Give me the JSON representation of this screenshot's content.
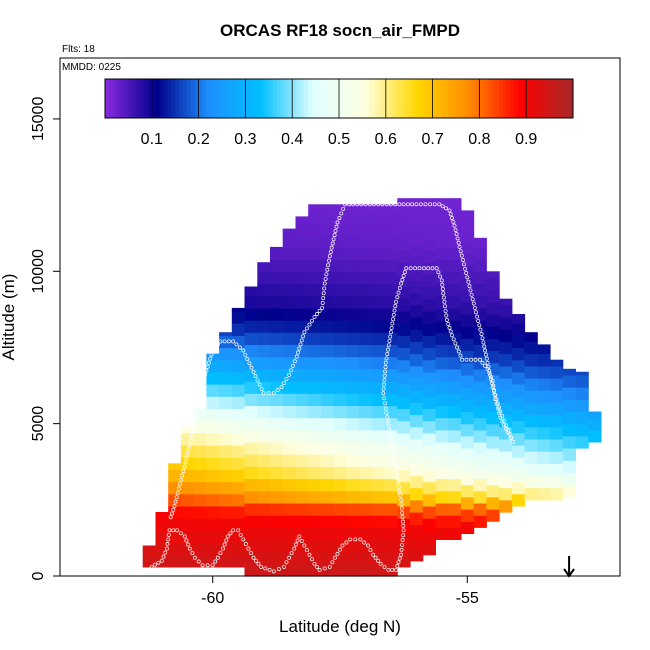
{
  "chart_data": {
    "type": "heatmap",
    "title": "ORCAS RF18 socn_air_FMPD",
    "annotations": {
      "flights": "Flts: 18",
      "date": "MMDD: 0225"
    },
    "xlabel": "Latitude (deg N)",
    "ylabel": "Altitude (m)",
    "xlim": [
      -63.0,
      -52.0
    ],
    "ylim": [
      0,
      17000
    ],
    "x_ticks": [
      {
        "value": -60,
        "label": "-60"
      },
      {
        "value": -55,
        "label": "-55"
      }
    ],
    "y_ticks": [
      {
        "value": 0,
        "label": "0"
      },
      {
        "value": 5000,
        "label": "5000"
      },
      {
        "value": 10000,
        "label": "10000"
      },
      {
        "value": 15000,
        "label": "15000"
      }
    ],
    "colorbar": {
      "range": [
        0,
        1
      ],
      "ticks": [
        {
          "value": 0.1,
          "label": "0.1"
        },
        {
          "value": 0.2,
          "label": "0.2"
        },
        {
          "value": 0.3,
          "label": "0.3"
        },
        {
          "value": 0.4,
          "label": "0.4"
        },
        {
          "value": 0.5,
          "label": "0.5"
        },
        {
          "value": 0.6,
          "label": "0.6"
        },
        {
          "value": 0.7,
          "label": "0.7"
        },
        {
          "value": 0.8,
          "label": "0.8"
        },
        {
          "value": 0.9,
          "label": "0.9"
        }
      ],
      "colors": [
        "#8a2be2",
        "#00008b",
        "#1e90ff",
        "#00bfff",
        "#e0ffff",
        "#ffffe0",
        "#ffd700",
        "#ff8c00",
        "#ff0000",
        "#a52a2a"
      ]
    },
    "field": {
      "description_free": true,
      "lat_bins": [
        -61.25,
        -52.25
      ],
      "bin_width_deg": 0.25,
      "bin_height_m": 400,
      "envelope": [
        {
          "lat": -61.25,
          "bottom": 300,
          "top": 1000
        },
        {
          "lat": -61.0,
          "bottom": 300,
          "top": 2100
        },
        {
          "lat": -60.75,
          "bottom": 300,
          "top": 3700
        },
        {
          "lat": -60.5,
          "bottom": 300,
          "top": 4900
        },
        {
          "lat": -60.25,
          "bottom": 300,
          "top": 5500
        },
        {
          "lat": -60.0,
          "bottom": 300,
          "top": 7300
        },
        {
          "lat": -59.75,
          "bottom": 300,
          "top": 8000
        },
        {
          "lat": -59.5,
          "bottom": 300,
          "top": 8800
        },
        {
          "lat": -59.25,
          "bottom": 0,
          "top": 9500
        },
        {
          "lat": -59.0,
          "bottom": 0,
          "top": 10300
        },
        {
          "lat": -58.75,
          "bottom": 0,
          "top": 10800
        },
        {
          "lat": -58.5,
          "bottom": 0,
          "top": 11400
        },
        {
          "lat": -58.25,
          "bottom": 0,
          "top": 11800
        },
        {
          "lat": -58.0,
          "bottom": 0,
          "top": 12200
        },
        {
          "lat": -57.75,
          "bottom": 0,
          "top": 12200
        },
        {
          "lat": -57.5,
          "bottom": 0,
          "top": 12200
        },
        {
          "lat": -57.25,
          "bottom": 0,
          "top": 12200
        },
        {
          "lat": -57.0,
          "bottom": 0,
          "top": 12200
        },
        {
          "lat": -56.75,
          "bottom": 0,
          "top": 12200
        },
        {
          "lat": -56.5,
          "bottom": 0,
          "top": 12200
        },
        {
          "lat": -56.25,
          "bottom": 300,
          "top": 12400
        },
        {
          "lat": -56.0,
          "bottom": 500,
          "top": 12400
        },
        {
          "lat": -55.75,
          "bottom": 700,
          "top": 12400
        },
        {
          "lat": -55.5,
          "bottom": 1200,
          "top": 12400
        },
        {
          "lat": -55.25,
          "bottom": 1200,
          "top": 12400
        },
        {
          "lat": -55.0,
          "bottom": 1400,
          "top": 12000
        },
        {
          "lat": -54.75,
          "bottom": 1600,
          "top": 11100
        },
        {
          "lat": -54.5,
          "bottom": 1800,
          "top": 10000
        },
        {
          "lat": -54.25,
          "bottom": 2100,
          "top": 9100
        },
        {
          "lat": -54.0,
          "bottom": 2300,
          "top": 8600
        },
        {
          "lat": -53.75,
          "bottom": 2500,
          "top": 8000
        },
        {
          "lat": -53.5,
          "bottom": 2500,
          "top": 7600
        },
        {
          "lat": -53.25,
          "bottom": 2500,
          "top": 7100
        },
        {
          "lat": -53.0,
          "bottom": 2600,
          "top": 6800
        },
        {
          "lat": -52.75,
          "bottom": 4200,
          "top": 6700
        },
        {
          "lat": -52.5,
          "bottom": 4400,
          "top": 5400
        }
      ],
      "levels_south": [
        {
          "alt": 0,
          "value": 0.96
        },
        {
          "alt": 1000,
          "value": 0.93
        },
        {
          "alt": 2000,
          "value": 0.9
        },
        {
          "alt": 2800,
          "value": 0.8
        },
        {
          "alt": 3400,
          "value": 0.72
        },
        {
          "alt": 4200,
          "value": 0.65
        },
        {
          "alt": 5000,
          "value": 0.55
        },
        {
          "alt": 5800,
          "value": 0.45
        },
        {
          "alt": 6800,
          "value": 0.32
        },
        {
          "alt": 8000,
          "value": 0.17
        },
        {
          "alt": 9000,
          "value": 0.1
        },
        {
          "alt": 10500,
          "value": 0.05
        },
        {
          "alt": 12500,
          "value": 0.02
        }
      ],
      "levels_north": [
        {
          "alt": 0,
          "value": 0.95
        },
        {
          "alt": 1600,
          "value": 0.9
        },
        {
          "alt": 2200,
          "value": 0.78
        },
        {
          "alt": 2600,
          "value": 0.58
        },
        {
          "alt": 3400,
          "value": 0.44
        },
        {
          "alt": 4500,
          "value": 0.34
        },
        {
          "alt": 5800,
          "value": 0.22
        },
        {
          "alt": 7200,
          "value": 0.12
        },
        {
          "alt": 8800,
          "value": 0.06
        },
        {
          "alt": 11000,
          "value": 0.02
        }
      ]
    },
    "flight_track": [
      [
        -61.2,
        300
      ],
      [
        -61.0,
        500
      ],
      [
        -60.9,
        900
      ],
      [
        -60.85,
        1500
      ],
      [
        -60.7,
        1500
      ],
      [
        -60.55,
        1300
      ],
      [
        -60.45,
        900
      ],
      [
        -60.35,
        600
      ],
      [
        -60.2,
        350
      ],
      [
        -60.0,
        350
      ],
      [
        -59.9,
        600
      ],
      [
        -59.8,
        900
      ],
      [
        -59.7,
        1300
      ],
      [
        -59.6,
        1500
      ],
      [
        -59.5,
        1500
      ],
      [
        -59.4,
        1200
      ],
      [
        -59.3,
        900
      ],
      [
        -59.2,
        600
      ],
      [
        -59.05,
        300
      ],
      [
        -58.8,
        150
      ],
      [
        -58.6,
        300
      ],
      [
        -58.5,
        600
      ],
      [
        -58.4,
        900
      ],
      [
        -58.3,
        1300
      ],
      [
        -58.2,
        1000
      ],
      [
        -58.1,
        700
      ],
      [
        -58.0,
        400
      ],
      [
        -57.9,
        200
      ],
      [
        -57.7,
        300
      ],
      [
        -57.6,
        600
      ],
      [
        -57.45,
        1000
      ],
      [
        -57.3,
        1200
      ],
      [
        -57.1,
        1200
      ],
      [
        -56.95,
        1000
      ],
      [
        -56.85,
        700
      ],
      [
        -56.7,
        400
      ],
      [
        -56.55,
        200
      ],
      [
        -56.4,
        200
      ],
      [
        -56.3,
        700
      ],
      [
        -56.25,
        1500
      ],
      [
        -56.3,
        2500
      ],
      [
        -56.4,
        3500
      ],
      [
        -56.5,
        4500
      ],
      [
        -56.6,
        5500
      ],
      [
        -56.65,
        6000
      ],
      [
        -56.6,
        7000
      ],
      [
        -56.5,
        8000
      ],
      [
        -56.4,
        9000
      ],
      [
        -56.3,
        9600
      ],
      [
        -56.2,
        10100
      ],
      [
        -55.85,
        10100
      ],
      [
        -55.6,
        10100
      ],
      [
        -55.5,
        9700
      ],
      [
        -55.45,
        9000
      ],
      [
        -55.4,
        8400
      ],
      [
        -55.3,
        7900
      ],
      [
        -55.2,
        7500
      ],
      [
        -55.1,
        7100
      ],
      [
        -54.75,
        7100
      ],
      [
        -54.6,
        6800
      ],
      [
        -54.5,
        6400
      ],
      [
        -54.45,
        5800
      ],
      [
        -54.35,
        5200
      ],
      [
        -54.2,
        4700
      ],
      [
        -54.1,
        4400
      ],
      [
        -54.2,
        4800
      ],
      [
        -54.35,
        5400
      ],
      [
        -54.5,
        6200
      ],
      [
        -54.6,
        7000
      ],
      [
        -54.7,
        7800
      ],
      [
        -54.85,
        8800
      ],
      [
        -55.0,
        9800
      ],
      [
        -55.15,
        10800
      ],
      [
        -55.25,
        11500
      ],
      [
        -55.35,
        12000
      ],
      [
        -55.55,
        12200
      ],
      [
        -56.0,
        12200
      ],
      [
        -56.5,
        12200
      ],
      [
        -57.0,
        12200
      ],
      [
        -57.4,
        12200
      ],
      [
        -57.55,
        11600
      ],
      [
        -57.7,
        10500
      ],
      [
        -57.8,
        9600
      ],
      [
        -57.85,
        8800
      ],
      [
        -58.0,
        8500
      ],
      [
        -58.2,
        8000
      ],
      [
        -58.35,
        7200
      ],
      [
        -58.5,
        6600
      ],
      [
        -58.65,
        6200
      ],
      [
        -58.8,
        6000
      ],
      [
        -59.0,
        6000
      ],
      [
        -59.2,
        6700
      ],
      [
        -59.4,
        7400
      ],
      [
        -59.6,
        7700
      ],
      [
        -59.85,
        7700
      ],
      [
        -60.0,
        7400
      ],
      [
        -60.15,
        6600
      ],
      [
        -60.3,
        5500
      ],
      [
        -60.45,
        4300
      ],
      [
        -60.6,
        3300
      ],
      [
        -60.75,
        2300
      ],
      [
        -60.85,
        1800
      ]
    ],
    "arrow_marker": {
      "lat": -53.0
    }
  }
}
